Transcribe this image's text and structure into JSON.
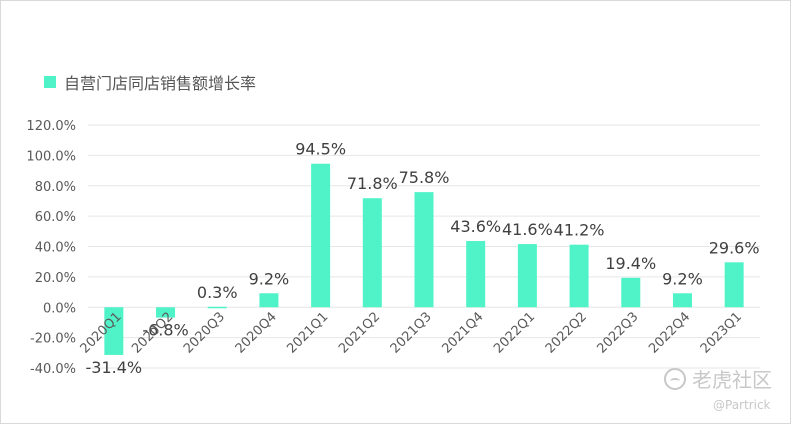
{
  "chart_data": {
    "type": "bar",
    "title": "",
    "legend": {
      "placement": "top-left",
      "entries": [
        "自营门店同店销售额增长率"
      ]
    },
    "series": [
      {
        "name": "自营门店同店销售额增长率",
        "color": "#50f3c8",
        "values": [
          -31.4,
          -6.8,
          0.3,
          9.2,
          94.5,
          71.8,
          75.8,
          43.6,
          41.6,
          41.2,
          19.4,
          9.2,
          29.6
        ],
        "labels": [
          "-31.4%",
          "-6.8%",
          "0.3%",
          "9.2%",
          "94.5%",
          "71.8%",
          "75.8%",
          "43.6%",
          "41.6%",
          "41.2%",
          "19.4%",
          "9.2%",
          "29.6%"
        ]
      }
    ],
    "categories": [
      "2020Q1",
      "2020Q2",
      "2020Q3",
      "2020Q4",
      "2021Q1",
      "2021Q2",
      "2021Q3",
      "2021Q4",
      "2022Q1",
      "2022Q2",
      "2022Q3",
      "2022Q4",
      "2023Q1"
    ],
    "ylim": [
      -40,
      120
    ],
    "yticks": [
      -40,
      -20,
      0,
      20,
      40,
      60,
      80,
      100,
      120
    ],
    "ytick_labels": [
      "-40.0%",
      "-20.0%",
      "0.0%",
      "20.0%",
      "40.0%",
      "60.0%",
      "80.0%",
      "100.0%",
      "120.0%"
    ],
    "grid": true,
    "xlabel": "",
    "ylabel": ""
  },
  "watermark": {
    "brand": "老虎社区",
    "handle": "@Partrick"
  }
}
